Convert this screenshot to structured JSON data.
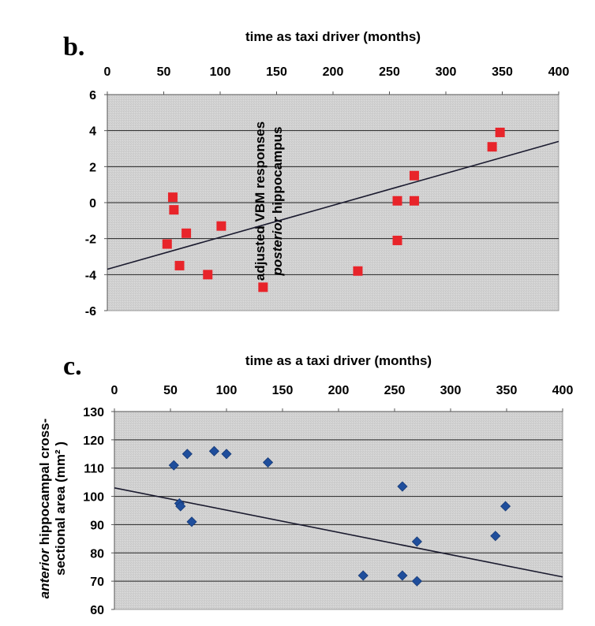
{
  "chart_data": [
    {
      "panel_label": "b.",
      "type": "scatter",
      "xlabel": "time as taxi driver (months)",
      "ylabel_lines": [
        "adjusted VBM responses",
        "posterior hippocampus"
      ],
      "ylabel_italic_word": "posterior",
      "xlim": [
        0,
        400
      ],
      "ylim": [
        -6,
        6
      ],
      "x_ticks": [
        "0",
        "50",
        "100",
        "150",
        "200",
        "250",
        "300",
        "350",
        "400"
      ],
      "x_tick_values": [
        0,
        50,
        100,
        150,
        200,
        250,
        300,
        350,
        400
      ],
      "y_ticks": [
        "6",
        "4",
        "2",
        "0",
        "-2",
        "-4",
        "-6"
      ],
      "y_tick_values": [
        6,
        4,
        2,
        0,
        -2,
        -4,
        -6
      ],
      "x_axis_position": "top",
      "grid": "horizontal",
      "marker": "square",
      "marker_color": "#e8242a",
      "plot_background": "#d4d4d4",
      "points": [
        {
          "x": 58,
          "y": 0.3
        },
        {
          "x": 59,
          "y": -0.4
        },
        {
          "x": 53,
          "y": -2.3
        },
        {
          "x": 64,
          "y": -3.5
        },
        {
          "x": 70,
          "y": -1.7
        },
        {
          "x": 89,
          "y": -4.0
        },
        {
          "x": 101,
          "y": -1.3
        },
        {
          "x": 138,
          "y": -4.7
        },
        {
          "x": 222,
          "y": -3.8
        },
        {
          "x": 257,
          "y": 0.1
        },
        {
          "x": 257,
          "y": -2.1
        },
        {
          "x": 272,
          "y": 1.5
        },
        {
          "x": 272,
          "y": 0.1
        },
        {
          "x": 341,
          "y": 3.1
        },
        {
          "x": 348,
          "y": 3.9
        }
      ],
      "trendline": {
        "x": [
          0,
          400
        ],
        "y": [
          -3.7,
          3.4
        ]
      }
    },
    {
      "panel_label": "c.",
      "type": "scatter",
      "xlabel": "time as a taxi driver (months)",
      "ylabel_lines": [
        "anterior  hippocampal cross-",
        "sectional area (mm² )"
      ],
      "ylabel_italic_word": "anterior",
      "xlim": [
        0,
        400
      ],
      "ylim": [
        60,
        130
      ],
      "x_ticks": [
        "0",
        "50",
        "100",
        "150",
        "200",
        "250",
        "300",
        "350",
        "400"
      ],
      "x_tick_values": [
        0,
        50,
        100,
        150,
        200,
        250,
        300,
        350,
        400
      ],
      "y_ticks": [
        "130",
        "120",
        "110",
        "100",
        "90",
        "80",
        "70",
        "60"
      ],
      "y_tick_values": [
        130,
        120,
        110,
        100,
        90,
        80,
        70,
        60
      ],
      "x_axis_position": "top",
      "grid": "horizontal",
      "marker": "diamond",
      "marker_color": "#1f4e9c",
      "plot_background": "#d4d4d4",
      "points": [
        {
          "x": 53,
          "y": 111
        },
        {
          "x": 65,
          "y": 115
        },
        {
          "x": 89,
          "y": 116
        },
        {
          "x": 100,
          "y": 115
        },
        {
          "x": 137,
          "y": 112
        },
        {
          "x": 58,
          "y": 97.5
        },
        {
          "x": 59,
          "y": 96.5
        },
        {
          "x": 69,
          "y": 91
        },
        {
          "x": 222,
          "y": 72
        },
        {
          "x": 257,
          "y": 103.5
        },
        {
          "x": 257,
          "y": 72
        },
        {
          "x": 270,
          "y": 84
        },
        {
          "x": 270,
          "y": 70
        },
        {
          "x": 340,
          "y": 86
        },
        {
          "x": 349,
          "y": 96.5
        }
      ],
      "trendline": {
        "x": [
          0,
          400
        ],
        "y": [
          103,
          71.5
        ]
      }
    }
  ]
}
